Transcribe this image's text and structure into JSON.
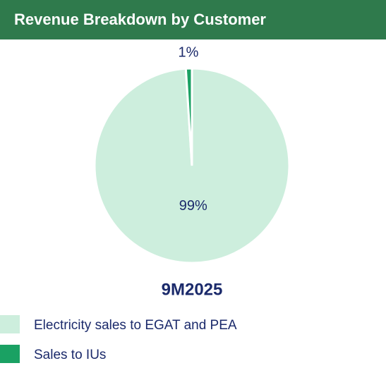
{
  "chart_data": {
    "type": "pie",
    "title": "Revenue Breakdown by Customer",
    "subtitle": "9M2025",
    "categories": [
      "Electricity sales to EGAT and PEA",
      "Sales to IUs"
    ],
    "values": [
      99,
      1
    ],
    "value_labels": [
      "99%",
      "1%"
    ],
    "colors": [
      "#cdeedd",
      "#1aa163"
    ],
    "legend": "bottom-left"
  }
}
